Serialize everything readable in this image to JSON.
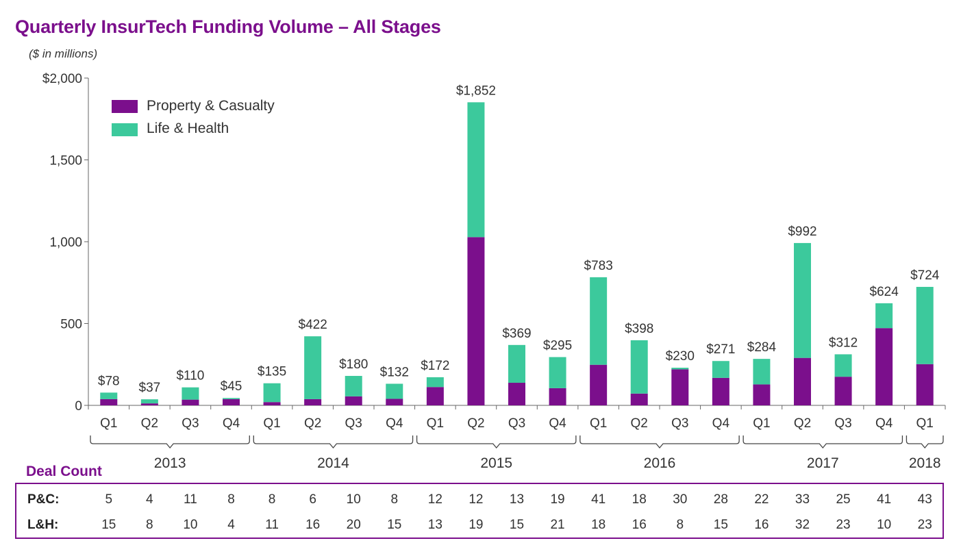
{
  "chart_data": {
    "type": "bar",
    "stacked": true,
    "title": "Quarterly InsurTech Funding Volume – All Stages",
    "subtitle": "($ in millions)",
    "ylim": [
      0,
      2000
    ],
    "yticks": [
      {
        "value": 0,
        "label": "0"
      },
      {
        "value": 500,
        "label": "500"
      },
      {
        "value": 1000,
        "label": "1,000"
      },
      {
        "value": 1500,
        "label": "1,500"
      },
      {
        "value": 2000,
        "label": "$2,000"
      }
    ],
    "categories": [
      "Q1",
      "Q2",
      "Q3",
      "Q4",
      "Q1",
      "Q2",
      "Q3",
      "Q4",
      "Q1",
      "Q2",
      "Q3",
      "Q4",
      "Q1",
      "Q2",
      "Q3",
      "Q4",
      "Q1",
      "Q2",
      "Q3",
      "Q4",
      "Q1"
    ],
    "years": [
      {
        "label": "2013",
        "start": 0,
        "end": 3
      },
      {
        "label": "2014",
        "start": 4,
        "end": 7
      },
      {
        "label": "2015",
        "start": 8,
        "end": 11
      },
      {
        "label": "2016",
        "start": 12,
        "end": 15
      },
      {
        "label": "2017",
        "start": 16,
        "end": 19
      },
      {
        "label": "2018",
        "start": 20,
        "end": 20
      }
    ],
    "series": [
      {
        "name": "Property & Casualty",
        "color": "#7b0f8c",
        "values": [
          38,
          12,
          35,
          38,
          20,
          38,
          55,
          40,
          112,
          1028,
          138,
          105,
          248,
          72,
          220,
          168,
          128,
          290,
          175,
          472,
          252
        ]
      },
      {
        "name": "Life & Health",
        "color": "#3cc99c",
        "values": [
          40,
          25,
          75,
          7,
          115,
          384,
          125,
          92,
          60,
          824,
          231,
          190,
          535,
          326,
          10,
          103,
          156,
          702,
          137,
          152,
          472
        ]
      }
    ],
    "totals": [
      78,
      37,
      110,
      45,
      135,
      422,
      180,
      132,
      172,
      1852,
      369,
      295,
      783,
      398,
      230,
      271,
      284,
      992,
      312,
      624,
      724
    ],
    "total_labels": [
      "$78",
      "$37",
      "$110",
      "$45",
      "$135",
      "$422",
      "$180",
      "$132",
      "$172",
      "$1,852",
      "$369",
      "$295",
      "$783",
      "$398",
      "$230",
      "$271",
      "$284",
      "$992",
      "$312",
      "$624",
      "$724"
    ],
    "legend_position": "top-left"
  },
  "deal_count": {
    "title": "Deal Count",
    "rows": [
      {
        "label": "P&C:",
        "values": [
          "5",
          "4",
          "11",
          "8",
          "8",
          "6",
          "10",
          "8",
          "12",
          "12",
          "13",
          "19",
          "41",
          "18",
          "30",
          "28",
          "22",
          "33",
          "25",
          "41",
          "43"
        ]
      },
      {
        "label": "L&H:",
        "values": [
          "15",
          "8",
          "10",
          "4",
          "11",
          "16",
          "20",
          "15",
          "13",
          "19",
          "15",
          "21",
          "18",
          "16",
          "8",
          "15",
          "16",
          "32",
          "23",
          "10",
          "23"
        ]
      }
    ]
  }
}
